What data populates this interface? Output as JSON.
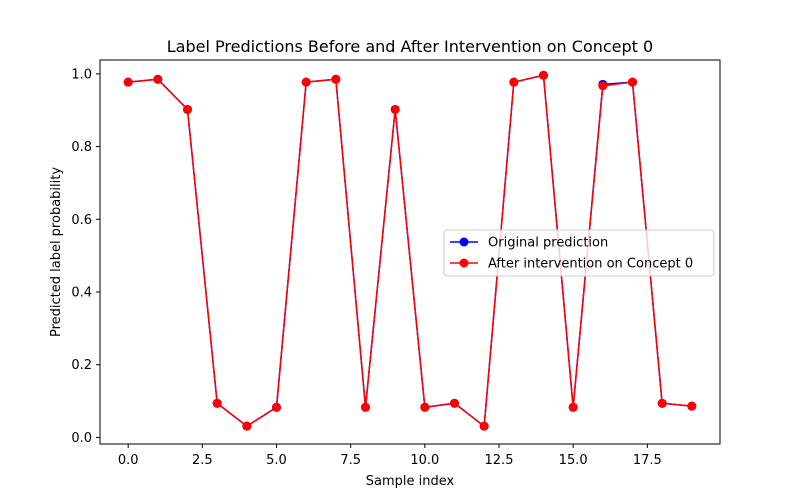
{
  "chart_data": {
    "type": "line",
    "title": "Label Predictions Before and After Intervention on Concept 0",
    "xlabel": "Sample index",
    "ylabel": "Predicted label probability",
    "xlim": [
      -0.95,
      19.95
    ],
    "ylim": [
      -0.018,
      1.038
    ],
    "xticks": [
      0.0,
      2.5,
      5.0,
      7.5,
      10.0,
      12.5,
      15.0,
      17.5
    ],
    "xtick_labels": [
      "0.0",
      "2.5",
      "5.0",
      "7.5",
      "10.0",
      "12.5",
      "15.0",
      "17.5"
    ],
    "yticks": [
      0.0,
      0.2,
      0.4,
      0.6,
      0.8,
      1.0
    ],
    "ytick_labels": [
      "0.0",
      "0.2",
      "0.4",
      "0.6",
      "0.8",
      "1.0"
    ],
    "grid": false,
    "legend_position": "center-right",
    "x": [
      0,
      1,
      2,
      3,
      4,
      5,
      6,
      7,
      8,
      9,
      10,
      11,
      12,
      13,
      14,
      15,
      16,
      17,
      18,
      19
    ],
    "series": [
      {
        "name": "Original prediction",
        "color": "#0000ff",
        "marker": "circle",
        "values": [
          0.977,
          0.985,
          0.902,
          0.094,
          0.031,
          0.083,
          0.977,
          0.985,
          0.083,
          0.902,
          0.083,
          0.094,
          0.031,
          0.977,
          0.996,
          0.083,
          0.971,
          0.977,
          0.094,
          0.086
        ]
      },
      {
        "name": "After intervention on Concept 0",
        "color": "#ff0000",
        "marker": "circle",
        "values": [
          0.977,
          0.985,
          0.902,
          0.094,
          0.031,
          0.083,
          0.977,
          0.985,
          0.083,
          0.902,
          0.083,
          0.094,
          0.031,
          0.977,
          0.996,
          0.083,
          0.967,
          0.977,
          0.094,
          0.086
        ]
      }
    ]
  }
}
